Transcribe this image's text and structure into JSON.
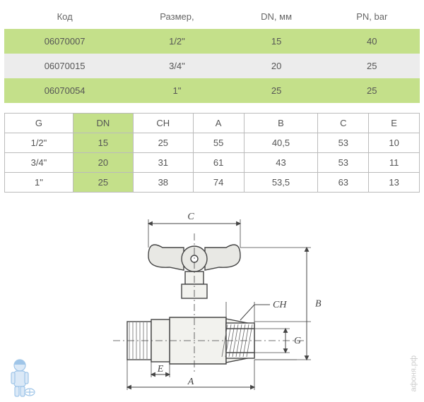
{
  "table1": {
    "headers": [
      "Код",
      "Размер,",
      "DN, мм",
      "PN, bar"
    ],
    "rows": [
      {
        "cells": [
          "06070007",
          "1/2\"",
          "15",
          "40"
        ],
        "class": "green-row"
      },
      {
        "cells": [
          "06070015",
          "3/4\"",
          "20",
          "25"
        ],
        "class": "gray-row"
      },
      {
        "cells": [
          "06070054",
          "1\"",
          "25",
          "25"
        ],
        "class": "green-row"
      }
    ]
  },
  "table2": {
    "headers": [
      "G",
      "DN",
      "CH",
      "A",
      "B",
      "C",
      "E"
    ],
    "dn_col_index": 1,
    "rows": [
      [
        "1/2\"",
        "15",
        "25",
        "55",
        "40,5",
        "53",
        "10"
      ],
      [
        "3/4\"",
        "20",
        "31",
        "61",
        "43",
        "53",
        "11"
      ],
      [
        "1\"",
        "25",
        "38",
        "74",
        "53,5",
        "63",
        "13"
      ]
    ]
  },
  "diagram": {
    "labels": {
      "C": "C",
      "CH": "CH",
      "B": "B",
      "G": "G",
      "E": "E",
      "A": "A"
    },
    "colors": {
      "stroke": "#444444",
      "fill_body": "#f2f2ee",
      "fill_handle": "#e8e8e4",
      "thread": "#888888",
      "hatch": "#666666"
    },
    "font_size": 14,
    "font_style": "italic"
  },
  "watermark": "афоня.рф"
}
